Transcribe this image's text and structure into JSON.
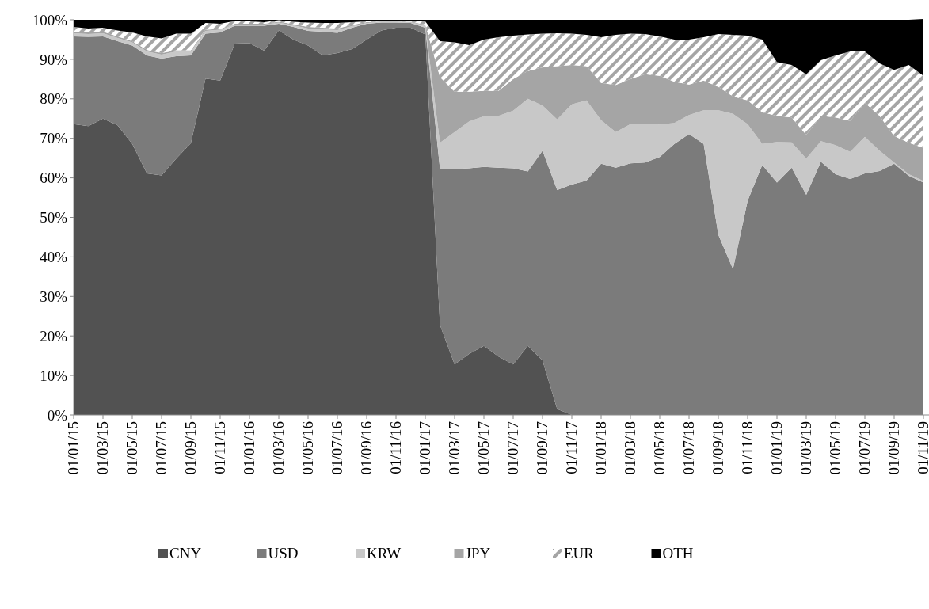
{
  "chart_data": {
    "type": "area",
    "stacked": true,
    "legend": "bottom",
    "grid": false,
    "categories": [
      "01/01/15",
      null,
      "01/03/15",
      null,
      "01/05/15",
      null,
      "01/07/15",
      null,
      "01/09/15",
      null,
      "01/11/15",
      null,
      "01/01/16",
      null,
      "01/03/16",
      null,
      "01/05/16",
      null,
      "01/07/16",
      null,
      "01/09/16",
      null,
      "01/11/16",
      null,
      "01/01/17",
      null,
      "01/03/17",
      null,
      "01/05/17",
      null,
      "01/07/17",
      null,
      "01/09/17",
      null,
      "01/11/17",
      null,
      "01/01/18",
      null,
      "01/03/18",
      null,
      "01/05/18",
      null,
      "01/07/18",
      null,
      "01/09/18",
      null,
      "01/11/18",
      null,
      "01/01/19",
      null,
      "01/03/19",
      null,
      "01/05/19",
      null,
      "01/07/19",
      null,
      "01/09/19",
      null,
      "01/11/19"
    ],
    "ylim": [
      0,
      100
    ],
    "yticks": [
      {
        "value": 0,
        "label": "0%"
      },
      {
        "value": 10,
        "label": "10%"
      },
      {
        "value": 20,
        "label": "20%"
      },
      {
        "value": 30,
        "label": "30%"
      },
      {
        "value": 40,
        "label": "40%"
      },
      {
        "value": 50,
        "label": "50%"
      },
      {
        "value": 60,
        "label": "60%"
      },
      {
        "value": 70,
        "label": "70%"
      },
      {
        "value": 80,
        "label": "80%"
      },
      {
        "value": 90,
        "label": "90%"
      },
      {
        "value": 100,
        "label": "100%"
      }
    ],
    "series": [
      {
        "name": "CNY",
        "color": "#525252",
        "values": [
          73.6,
          73.1,
          75.0,
          73.3,
          68.6,
          61.1,
          60.6,
          64.9,
          68.8,
          85.1,
          84.6,
          94.0,
          94.1,
          92.2,
          97.3,
          95.0,
          93.5,
          91.0,
          91.6,
          92.6,
          95.0,
          97.3,
          98.0,
          98.0,
          96.3,
          22.8,
          12.8,
          15.5,
          17.5,
          14.8,
          12.8,
          17.5,
          13.8,
          1.5,
          0,
          0,
          0,
          0,
          0,
          0,
          0,
          0,
          0,
          0,
          0,
          0,
          0,
          0,
          0,
          0,
          0,
          0,
          0,
          0,
          0,
          0,
          0,
          0,
          0
        ]
      },
      {
        "name": "USD",
        "color": "#7b7b7b",
        "values": [
          22.2,
          22.6,
          20.8,
          21.3,
          24.9,
          29.9,
          29.6,
          25.9,
          22.2,
          11.4,
          12.2,
          4.5,
          4.4,
          6.3,
          1.7,
          3.2,
          3.7,
          6.0,
          5.1,
          5.4,
          4.0,
          2.0,
          1.3,
          1.2,
          1.7,
          39.5,
          49.4,
          46.9,
          45.3,
          47.8,
          49.6,
          44.1,
          53.1,
          55.4,
          58.3,
          59.3,
          63.6,
          62.6,
          63.7,
          63.9,
          65.3,
          68.6,
          71.1,
          68.6,
          45.6,
          36.9,
          54.2,
          63.3,
          58.8,
          62.6,
          55.7,
          64.1,
          60.9,
          59.7,
          61.1,
          61.7,
          63.6,
          60.5,
          58.8
        ]
      },
      {
        "name": "KRW",
        "color": "#c8c8c8",
        "values": [
          0.8,
          0.7,
          0.8,
          0.8,
          0.8,
          1.0,
          1.0,
          1.2,
          1.0,
          0.7,
          0.7,
          0.3,
          0.3,
          0.3,
          0.3,
          0.4,
          0.6,
          0.6,
          0.7,
          0.4,
          0.2,
          0.2,
          0.2,
          0.2,
          0.5,
          6.6,
          9.4,
          11.9,
          12.8,
          13.1,
          14.6,
          18.4,
          11.4,
          17.9,
          20.3,
          20.3,
          11.0,
          9.0,
          9.9,
          9.8,
          8.2,
          5.3,
          4.8,
          8.5,
          31.5,
          39.3,
          19.4,
          5.3,
          10.3,
          6.4,
          9.2,
          5.2,
          7.4,
          6.9,
          9.3,
          5.2,
          0.3,
          0.4,
          0.4
        ]
      },
      {
        "name": "JPY",
        "color": "#a5a5a5",
        "values": [
          0.4,
          0.4,
          0.4,
          0.4,
          0.3,
          0.4,
          0.4,
          0.3,
          0.3,
          0.3,
          0.2,
          0.2,
          0.2,
          0.2,
          0.2,
          0.3,
          0.4,
          0.4,
          0.4,
          0.3,
          0.2,
          0.1,
          0.1,
          0.1,
          0.3,
          16.6,
          10.2,
          7.5,
          6.4,
          6.3,
          8.0,
          7.0,
          9.7,
          13.5,
          10.0,
          8.7,
          9.4,
          11.9,
          11.4,
          12.5,
          12.3,
          10.4,
          7.7,
          7.5,
          5.9,
          4.4,
          6.0,
          8.0,
          6.6,
          6.3,
          6.0,
          6.4,
          7.0,
          7.8,
          8.6,
          8.8,
          6.7,
          8.0,
          8.4
        ]
      },
      {
        "name": "EUR",
        "color": "#a5a5a5",
        "values": [
          1.2,
          1.0,
          1.0,
          1.5,
          2.2,
          3.4,
          3.7,
          4.2,
          4.2,
          1.7,
          1.3,
          0.7,
          0.6,
          0.4,
          0.4,
          0.6,
          1.1,
          1.2,
          1.4,
          0.7,
          0.2,
          0.2,
          0.2,
          0.2,
          0.8,
          9.1,
          12.5,
          11.8,
          13.0,
          13.6,
          11.0,
          9.3,
          8.5,
          8.3,
          7.9,
          7.9,
          11.6,
          12.7,
          11.5,
          10.2,
          10.0,
          10.7,
          11.4,
          11.0,
          13.4,
          15.6,
          16.4,
          18.4,
          13.6,
          13.3,
          15.3,
          14.1,
          15.7,
          17.6,
          13.0,
          13.3,
          16.7,
          19.7,
          18.2
        ]
      },
      {
        "name": "OTH",
        "color": "#000000",
        "values": [
          1.8,
          2.2,
          2.0,
          2.7,
          3.2,
          4.2,
          4.7,
          3.5,
          3.5,
          0.8,
          1.0,
          0.3,
          0.4,
          0.6,
          0.1,
          0.5,
          0.7,
          0.8,
          0.8,
          0.6,
          0.4,
          0.2,
          0.2,
          0.3,
          0.4,
          5.4,
          5.7,
          6.4,
          5.0,
          4.4,
          4.0,
          3.7,
          3.5,
          3.4,
          3.5,
          3.8,
          4.4,
          3.8,
          3.5,
          3.6,
          4.2,
          5.0,
          5.0,
          4.4,
          3.6,
          3.8,
          4.0,
          5.0,
          10.7,
          11.4,
          13.8,
          10.2,
          9.0,
          8.0,
          8.0,
          11.0,
          12.7,
          11.4,
          14.4
        ]
      }
    ]
  }
}
